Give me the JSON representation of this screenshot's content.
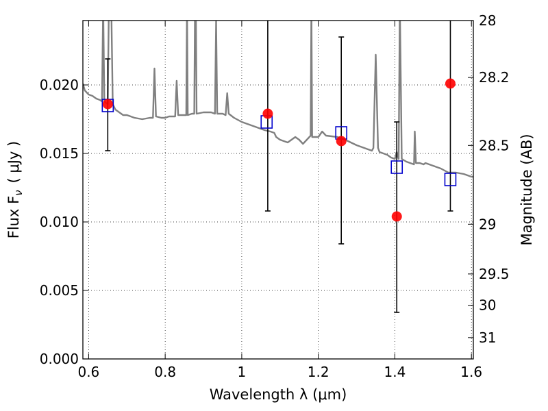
{
  "chart_data": {
    "type": "scatter",
    "xlabel": "Wavelength  λ (μm)",
    "ylabel": "Flux  F",
    "ylabel_sub": "ν",
    "ylabel_unit": "( μJy )",
    "y2label": "Magnitude (AB)",
    "xlim": [
      0.585,
      1.605
    ],
    "ylim": [
      0.0,
      0.0247
    ],
    "grid": true,
    "x_ticks": [
      {
        "value": 0.6,
        "label": "0.6"
      },
      {
        "value": 0.8,
        "label": "0.8"
      },
      {
        "value": 1.0,
        "label": "1"
      },
      {
        "value": 1.2,
        "label": "1.2"
      },
      {
        "value": 1.4,
        "label": "1.4"
      },
      {
        "value": 1.6,
        "label": "1.6"
      }
    ],
    "y_ticks": [
      {
        "value": 0.0,
        "label": "0.000"
      },
      {
        "value": 0.005,
        "label": "0.005"
      },
      {
        "value": 0.01,
        "label": "0.010"
      },
      {
        "value": 0.015,
        "label": "0.015"
      },
      {
        "value": 0.02,
        "label": "0.020"
      }
    ],
    "mag_ticks": [
      {
        "value": 28,
        "label": "28"
      },
      {
        "value": 28.2,
        "label": "28.2"
      },
      {
        "value": 28.5,
        "label": "28.5"
      },
      {
        "value": 29,
        "label": "29"
      },
      {
        "value": 29.5,
        "label": "29.5"
      },
      {
        "value": 30,
        "label": "30"
      },
      {
        "value": 31,
        "label": "31"
      }
    ],
    "series": [
      {
        "kind": "observed",
        "color": "#ff0000",
        "marker": "circle",
        "points": [
          {
            "x": 0.65,
            "y": 0.0186,
            "err_low": 0.0152,
            "err_high": 0.0219
          },
          {
            "x": 1.068,
            "y": 0.0179,
            "err_low": 0.0108,
            "err_high": 0.0249
          },
          {
            "x": 1.26,
            "y": 0.0159,
            "err_low": 0.0084,
            "err_high": 0.0235
          },
          {
            "x": 1.405,
            "y": 0.0104,
            "err_low": 0.0034,
            "err_high": 0.0173
          },
          {
            "x": 1.545,
            "y": 0.0201,
            "err_low": 0.0108,
            "err_high": 0.0249
          }
        ]
      },
      {
        "kind": "model-photometry",
        "color": "#0000cc",
        "marker": "open-square",
        "points": [
          {
            "x": 0.65,
            "y": 0.0185
          },
          {
            "x": 1.065,
            "y": 0.0173
          },
          {
            "x": 1.26,
            "y": 0.0165
          },
          {
            "x": 1.405,
            "y": 0.014
          },
          {
            "x": 1.545,
            "y": 0.0131
          }
        ]
      },
      {
        "kind": "model-spectrum",
        "color": "#808080",
        "marker": "line",
        "points": [
          [
            0.585,
            0.0201
          ],
          [
            0.59,
            0.0196
          ],
          [
            0.6,
            0.0193
          ],
          [
            0.61,
            0.0192
          ],
          [
            0.62,
            0.019
          ],
          [
            0.63,
            0.0189
          ],
          [
            0.635,
            0.0188
          ],
          [
            0.638,
            0.026
          ],
          [
            0.641,
            0.0188
          ],
          [
            0.645,
            0.0187
          ],
          [
            0.65,
            0.0186
          ],
          [
            0.653,
            0.026
          ],
          [
            0.656,
            0.026
          ],
          [
            0.659,
            0.026
          ],
          [
            0.663,
            0.0186
          ],
          [
            0.67,
            0.0182
          ],
          [
            0.68,
            0.018
          ],
          [
            0.69,
            0.0178
          ],
          [
            0.7,
            0.0178
          ],
          [
            0.72,
            0.0176
          ],
          [
            0.74,
            0.0175
          ],
          [
            0.76,
            0.0176
          ],
          [
            0.768,
            0.0176
          ],
          [
            0.772,
            0.0212
          ],
          [
            0.776,
            0.0177
          ],
          [
            0.79,
            0.0176
          ],
          [
            0.8,
            0.0176
          ],
          [
            0.81,
            0.0177
          ],
          [
            0.82,
            0.0177
          ],
          [
            0.826,
            0.0177
          ],
          [
            0.83,
            0.0203
          ],
          [
            0.834,
            0.0178
          ],
          [
            0.85,
            0.0178
          ],
          [
            0.855,
            0.0178
          ],
          [
            0.857,
            0.026
          ],
          [
            0.859,
            0.0178
          ],
          [
            0.87,
            0.0179
          ],
          [
            0.876,
            0.0179
          ],
          [
            0.878,
            0.026
          ],
          [
            0.88,
            0.026
          ],
          [
            0.882,
            0.0179
          ],
          [
            0.9,
            0.018
          ],
          [
            0.92,
            0.018
          ],
          [
            0.93,
            0.0179
          ],
          [
            0.933,
            0.0247
          ],
          [
            0.936,
            0.0179
          ],
          [
            0.95,
            0.0179
          ],
          [
            0.958,
            0.0178
          ],
          [
            0.962,
            0.0194
          ],
          [
            0.966,
            0.0179
          ],
          [
            0.98,
            0.0176
          ],
          [
            1.0,
            0.0173
          ],
          [
            1.02,
            0.0171
          ],
          [
            1.04,
            0.0169
          ],
          [
            1.06,
            0.0167
          ],
          [
            1.075,
            0.0166
          ],
          [
            1.085,
            0.0165
          ],
          [
            1.09,
            0.0162
          ],
          [
            1.1,
            0.016
          ],
          [
            1.12,
            0.0158
          ],
          [
            1.14,
            0.0162
          ],
          [
            1.15,
            0.016
          ],
          [
            1.16,
            0.0157
          ],
          [
            1.18,
            0.0163
          ],
          [
            1.182,
            0.026
          ],
          [
            1.184,
            0.0162
          ],
          [
            1.2,
            0.0162
          ],
          [
            1.21,
            0.0166
          ],
          [
            1.22,
            0.0163
          ],
          [
            1.25,
            0.0162
          ],
          [
            1.27,
            0.016
          ],
          [
            1.3,
            0.0156
          ],
          [
            1.33,
            0.0153
          ],
          [
            1.34,
            0.0152
          ],
          [
            1.344,
            0.0154
          ],
          [
            1.35,
            0.0222
          ],
          [
            1.356,
            0.0154
          ],
          [
            1.36,
            0.0151
          ],
          [
            1.37,
            0.015
          ],
          [
            1.38,
            0.0149
          ],
          [
            1.39,
            0.0147
          ],
          [
            1.4,
            0.0146
          ],
          [
            1.405,
            0.0151
          ],
          [
            1.41,
            0.0146
          ],
          [
            1.413,
            0.026
          ],
          [
            1.418,
            0.0146
          ],
          [
            1.43,
            0.0144
          ],
          [
            1.44,
            0.0143
          ],
          [
            1.45,
            0.0142
          ],
          [
            1.452,
            0.0166
          ],
          [
            1.455,
            0.0143
          ],
          [
            1.46,
            0.0143
          ],
          [
            1.465,
            0.0143
          ],
          [
            1.475,
            0.0142
          ],
          [
            1.48,
            0.0143
          ],
          [
            1.49,
            0.0142
          ],
          [
            1.5,
            0.0141
          ],
          [
            1.52,
            0.0139
          ],
          [
            1.54,
            0.0136
          ],
          [
            1.56,
            0.0136
          ],
          [
            1.58,
            0.0135
          ],
          [
            1.6,
            0.0133
          ],
          [
            1.605,
            0.0133
          ]
        ]
      }
    ]
  }
}
